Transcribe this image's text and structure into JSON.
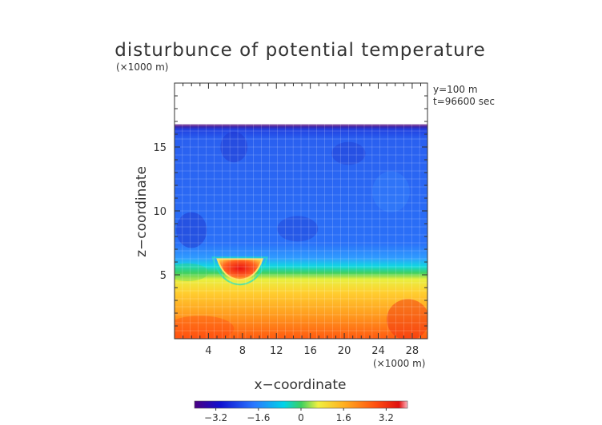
{
  "chart_data": {
    "type": "heatmap",
    "title": "disturbunce of potential temperature",
    "y_unit_label": "(×1000 m)",
    "x_unit_label": "(×1000 m)",
    "xlabel": "x−coordinate",
    "ylabel": "z−coordinate",
    "annotations": [
      "y=100 m",
      "t=96600 sec"
    ],
    "x_ticks": [
      4,
      8,
      12,
      16,
      20,
      24,
      28
    ],
    "x_tick_labels": [
      "4",
      "8",
      "12",
      "16",
      "20",
      "24",
      "28"
    ],
    "y_ticks": [
      5,
      10,
      15
    ],
    "y_tick_labels": [
      "5",
      "10",
      "15"
    ],
    "xlim": [
      0,
      29.8
    ],
    "ylim": [
      0,
      20
    ],
    "colorbar": {
      "ticks": [
        -3.2,
        -1.6,
        0,
        1.6,
        3.2
      ],
      "tick_labels": [
        "−3.2",
        "−1.6",
        "0",
        "1.6",
        "3.2"
      ],
      "range": [
        -4,
        4
      ]
    },
    "field_description_z_profile": [
      {
        "z": 0.5,
        "value": 2.6
      },
      {
        "z": 2.0,
        "value": 2.0
      },
      {
        "z": 3.5,
        "value": 1.4
      },
      {
        "z": 4.8,
        "value": 0.8
      },
      {
        "z": 5.5,
        "value": 0.1
      },
      {
        "z": 6.2,
        "value": -0.8
      },
      {
        "z": 7.0,
        "value": -1.4
      },
      {
        "z": 9.0,
        "value": -1.9
      },
      {
        "z": 12.0,
        "value": -2.0
      },
      {
        "z": 15.0,
        "value": -2.1
      },
      {
        "z": 16.5,
        "value": -2.6
      }
    ],
    "field_top_z": 16.7,
    "warm_anomaly": {
      "x": 7.7,
      "z": 5.8,
      "value": 2.8
    }
  }
}
